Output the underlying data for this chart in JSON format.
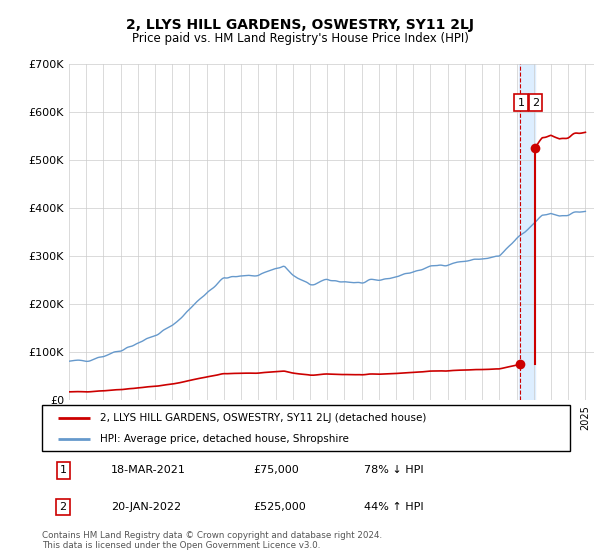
{
  "title": "2, LLYS HILL GARDENS, OSWESTRY, SY11 2LJ",
  "subtitle": "Price paid vs. HM Land Registry's House Price Index (HPI)",
  "ylim": [
    0,
    700000
  ],
  "yticks": [
    0,
    100000,
    200000,
    300000,
    400000,
    500000,
    600000,
    700000
  ],
  "ytick_labels": [
    "£0",
    "£100K",
    "£200K",
    "£300K",
    "£400K",
    "£500K",
    "£600K",
    "£700K"
  ],
  "hpi_color": "#6699cc",
  "property_color": "#cc0000",
  "annotation_color": "#cc0000",
  "dashed_line_color": "#cc0000",
  "shade_color": "#ddeeff",
  "background_color": "#ffffff",
  "grid_color": "#cccccc",
  "legend_label_property": "2, LLYS HILL GARDENS, OSWESTRY, SY11 2LJ (detached house)",
  "legend_label_hpi": "HPI: Average price, detached house, Shropshire",
  "transaction1_label": "1",
  "transaction1_date": "18-MAR-2021",
  "transaction1_price": "£75,000",
  "transaction1_hpi": "78% ↓ HPI",
  "transaction1_year": 2021.2,
  "transaction1_value": 75000,
  "transaction2_label": "2",
  "transaction2_date": "20-JAN-2022",
  "transaction2_price": "£525,000",
  "transaction2_hpi": "44% ↑ HPI",
  "transaction2_year": 2022.05,
  "transaction2_value": 525000,
  "footer": "Contains HM Land Registry data © Crown copyright and database right 2024.\nThis data is licensed under the Open Government Licence v3.0.",
  "xlim_start": 1995.0,
  "xlim_end": 2025.5
}
